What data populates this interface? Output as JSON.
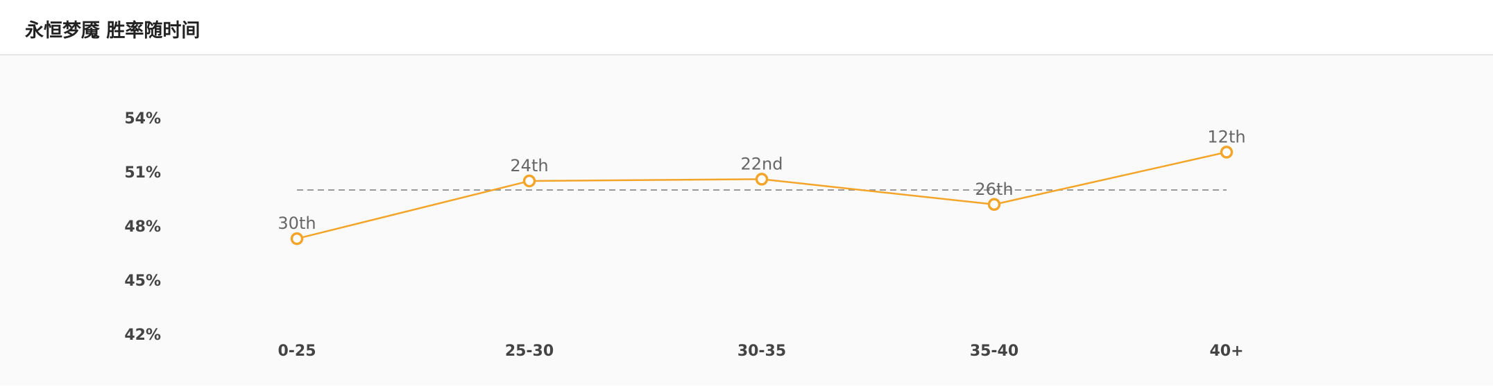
{
  "page_title": "永恒梦魇 胜率随时间",
  "colors": {
    "line": "#f3a52a",
    "reference": "#999999",
    "text": "#444444",
    "rank_label": "#666666"
  },
  "chart_data": {
    "type": "line",
    "categories": [
      "0-25",
      "25-30",
      "30-35",
      "35-40",
      "40+"
    ],
    "values": [
      47.3,
      50.5,
      50.6,
      49.2,
      52.1
    ],
    "point_labels": [
      "30th",
      "24th",
      "22nd",
      "26th",
      "12th"
    ],
    "reference_value": 50,
    "yticks": [
      "54%",
      "51%",
      "48%",
      "45%",
      "42%"
    ],
    "ytick_values": [
      54,
      51,
      48,
      45,
      42
    ],
    "ylim": [
      42,
      54
    ],
    "grid": false,
    "legend": "none"
  }
}
